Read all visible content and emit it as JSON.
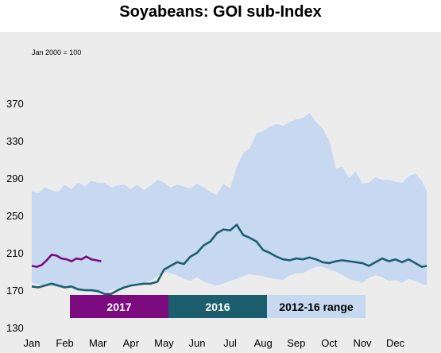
{
  "chart_data": {
    "type": "area",
    "title": "Soyabeans: GOI sub-Index",
    "note": "Jan 2000 = 100",
    "xlabel": "",
    "ylabel": "",
    "ylim": [
      130,
      370
    ],
    "yticks": [
      130,
      170,
      210,
      250,
      290,
      330,
      370
    ],
    "x_months": [
      "Jan",
      "Feb",
      "Mar",
      "Apr",
      "May",
      "Jun",
      "Jul",
      "Aug",
      "Sep",
      "Oct",
      "Nov",
      "Dec"
    ],
    "grid": false,
    "legend_position": "bottom-left",
    "series": [
      {
        "name": "2012-16 range",
        "kind": "range",
        "color": "#c6d9f1",
        "x": [
          0.0,
          0.2,
          0.4,
          0.6,
          0.8,
          1.0,
          1.2,
          1.4,
          1.6,
          1.8,
          2.0,
          2.2,
          2.4,
          2.6,
          2.8,
          3.0,
          3.2,
          3.4,
          3.6,
          3.8,
          4.0,
          4.2,
          4.4,
          4.6,
          4.8,
          5.0,
          5.2,
          5.4,
          5.6,
          5.8,
          6.0,
          6.2,
          6.4,
          6.6,
          6.8,
          7.0,
          7.2,
          7.4,
          7.6,
          7.8,
          8.0,
          8.2,
          8.4,
          8.6,
          8.8,
          9.0,
          9.2,
          9.4,
          9.6,
          9.8,
          10.0,
          10.2,
          10.4,
          10.6,
          10.8,
          11.0,
          11.2,
          11.4,
          11.6,
          11.8,
          11.95
        ],
        "high": [
          276,
          274,
          280,
          277,
          275,
          283,
          278,
          285,
          281,
          287,
          285,
          285,
          280,
          282,
          283,
          278,
          283,
          277,
          282,
          288,
          285,
          280,
          283,
          281,
          279,
          284,
          280,
          275,
          272,
          284,
          279,
          302,
          317,
          322,
          338,
          340,
          345,
          348,
          346,
          350,
          353,
          354,
          360,
          350,
          343,
          330,
          300,
          302,
          290,
          297,
          284,
          285,
          291,
          288,
          288,
          286,
          285,
          292,
          295,
          287,
          276
        ],
        "low": [
          178,
          176,
          175,
          174,
          173,
          172,
          172,
          169,
          169,
          168,
          167,
          168,
          170,
          172,
          172,
          175,
          176,
          178,
          180,
          185,
          190,
          188,
          186,
          182,
          180,
          184,
          179,
          177,
          175,
          177,
          180,
          182,
          185,
          187,
          186,
          185,
          183,
          182,
          181,
          186,
          188,
          188,
          192,
          195,
          195,
          192,
          190,
          186,
          182,
          180,
          178,
          183,
          186,
          184,
          180,
          181,
          178,
          182,
          180,
          177,
          175
        ]
      },
      {
        "name": "2016",
        "kind": "line",
        "color": "#1d5e6e",
        "x": [
          0.0,
          0.2,
          0.4,
          0.6,
          0.8,
          1.0,
          1.2,
          1.4,
          1.6,
          1.8,
          2.0,
          2.2,
          2.4,
          2.6,
          2.8,
          3.0,
          3.2,
          3.4,
          3.6,
          3.8,
          4.0,
          4.2,
          4.4,
          4.6,
          4.8,
          5.0,
          5.2,
          5.4,
          5.6,
          5.8,
          6.0,
          6.2,
          6.4,
          6.6,
          6.8,
          7.0,
          7.2,
          7.4,
          7.6,
          7.8,
          8.0,
          8.2,
          8.4,
          8.6,
          8.8,
          9.0,
          9.2,
          9.4,
          9.6,
          9.8,
          10.0,
          10.2,
          10.4,
          10.6,
          10.8,
          11.0,
          11.2,
          11.4,
          11.6,
          11.8,
          11.95
        ],
        "values": [
          174,
          173,
          175,
          177,
          175,
          173,
          174,
          171,
          170,
          170,
          169,
          166,
          166,
          170,
          173,
          175,
          176,
          177,
          177,
          179,
          192,
          196,
          200,
          198,
          206,
          210,
          218,
          222,
          231,
          235,
          234,
          240,
          229,
          226,
          222,
          213,
          210,
          206,
          203,
          202,
          204,
          203,
          205,
          203,
          200,
          199,
          201,
          202,
          201,
          200,
          199,
          196,
          200,
          204,
          201,
          203,
          200,
          203,
          199,
          195,
          196
        ]
      },
      {
        "name": "2017",
        "kind": "line",
        "color": "#7b0b7f",
        "x": [
          0.0,
          0.15,
          0.3,
          0.45,
          0.6,
          0.75,
          0.9,
          1.05,
          1.2,
          1.35,
          1.5,
          1.65,
          1.8,
          1.95,
          2.1
        ],
        "values": [
          196,
          195,
          197,
          202,
          208,
          207,
          204,
          203,
          201,
          204,
          203,
          206,
          203,
          202,
          201
        ]
      }
    ]
  },
  "legend": [
    {
      "label": "2017",
      "color": "#7b0b7f",
      "text_color": "#ffffff"
    },
    {
      "label": "2016",
      "color": "#1d5e6e",
      "text_color": "#ffffff"
    },
    {
      "label": "2012-16 range",
      "color": "#c6d9f1",
      "text_color": "#000000"
    }
  ]
}
